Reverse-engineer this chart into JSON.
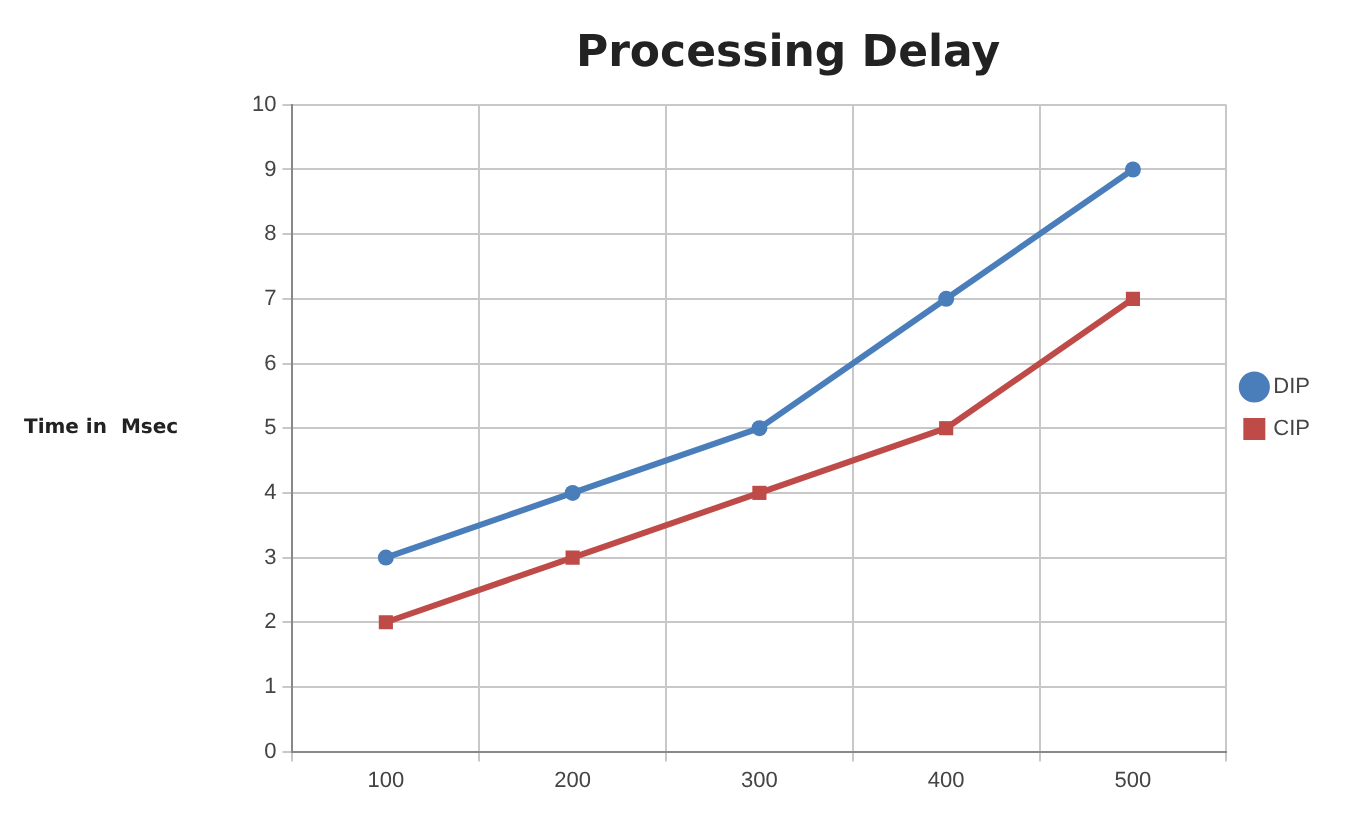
{
  "chart_data": {
    "type": "line",
    "title": "Processing Delay",
    "ylabel": "Time in  Msec",
    "categories": [
      "100",
      "200",
      "300",
      "400",
      "500"
    ],
    "series": [
      {
        "name": "DIP",
        "color": "#4a7ebb",
        "values": [
          3,
          4,
          5,
          7,
          9
        ],
        "marker": "circle"
      },
      {
        "name": "CIP",
        "color": "#be4b48",
        "values": [
          2,
          3,
          4,
          5,
          7
        ],
        "marker": "square"
      }
    ],
    "ylim": [
      0,
      10
    ],
    "yticks": [
      0,
      1,
      2,
      3,
      4,
      5,
      6,
      7,
      8,
      9,
      10
    ],
    "grid": true,
    "legend": "right",
    "line_style": "solid"
  }
}
